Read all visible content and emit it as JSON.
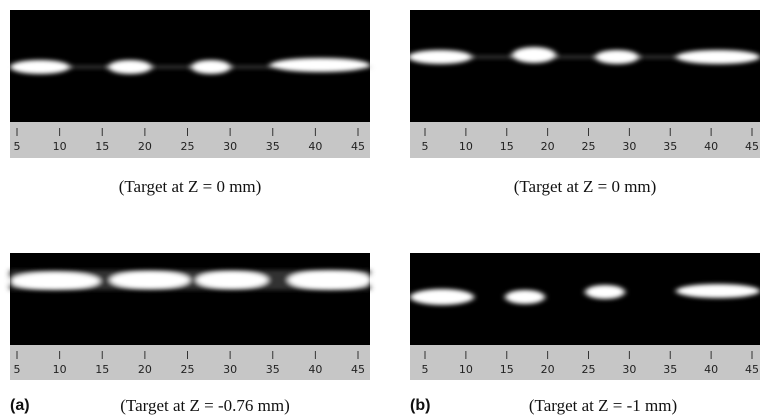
{
  "axis_ticks": [
    5,
    10,
    15,
    20,
    25,
    30,
    35,
    40,
    45
  ],
  "panels": [
    {
      "caption": "(Target at Z = 0 mm)"
    },
    {
      "caption": "(Target at Z = 0 mm)"
    },
    {
      "label": "(a)",
      "caption": "(Target at Z = -0.76 mm)"
    },
    {
      "label": "(b)",
      "caption": "(Target at Z = -1 mm)"
    }
  ]
}
